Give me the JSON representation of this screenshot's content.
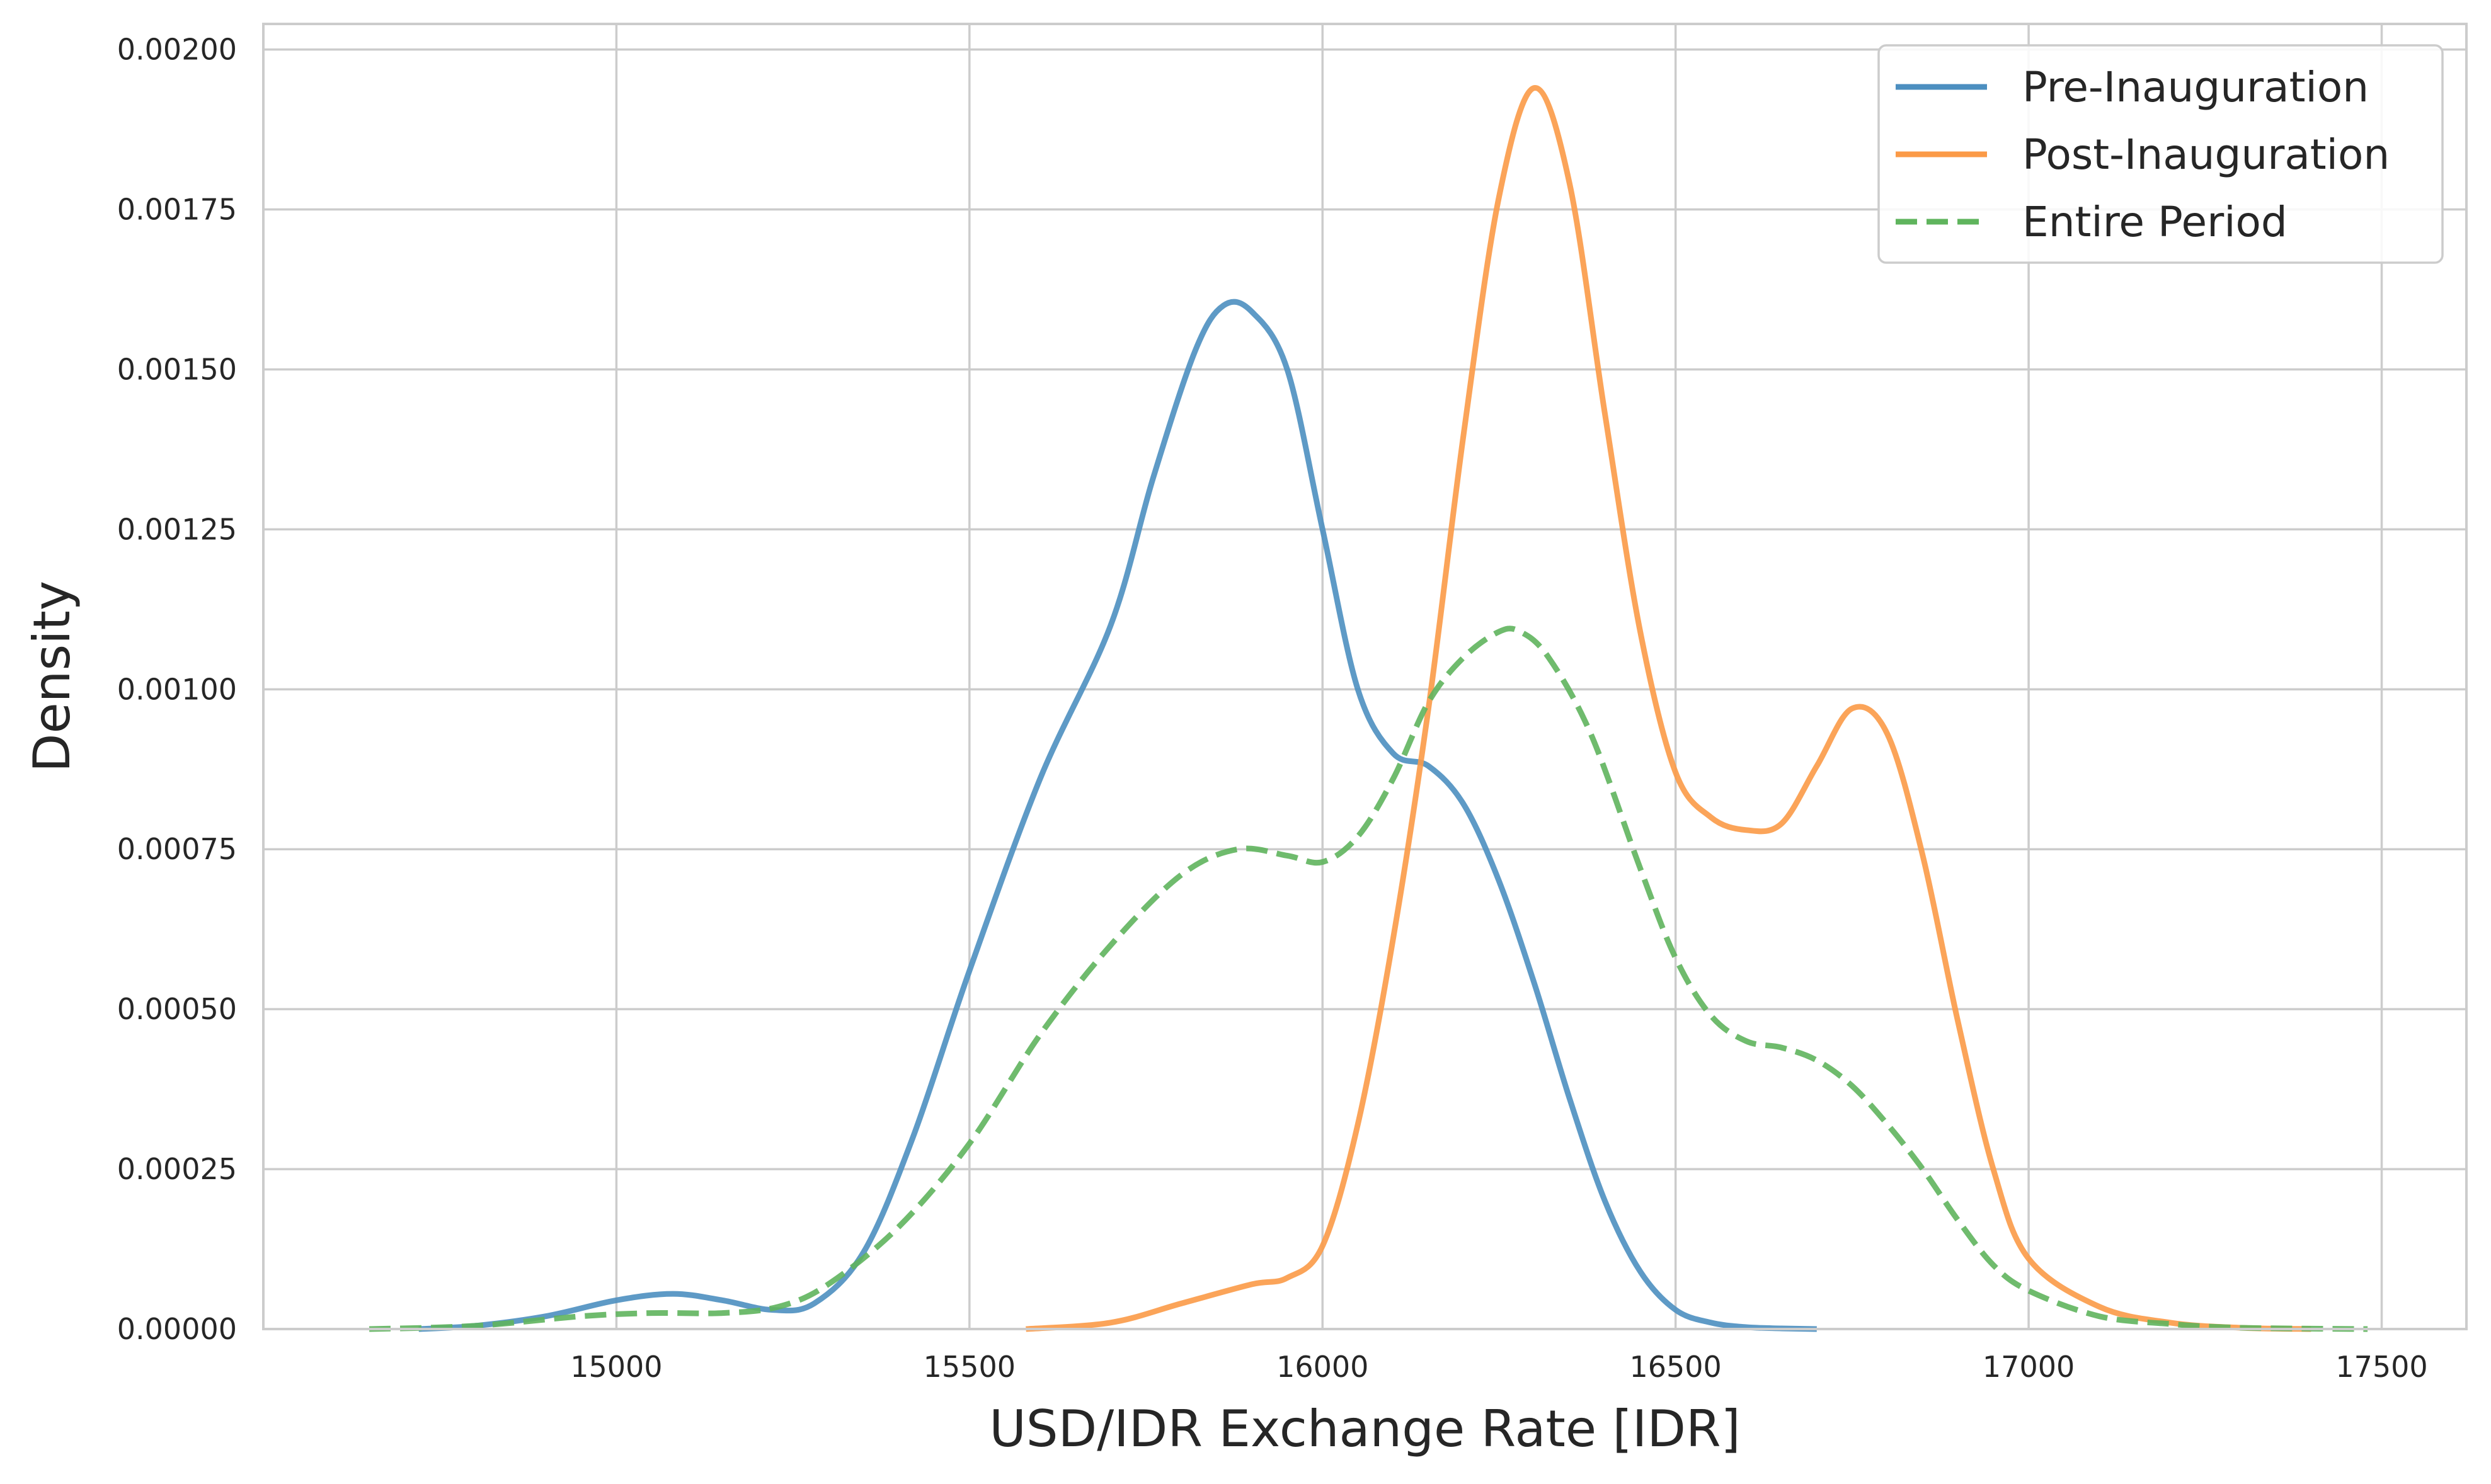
{
  "chart_data": {
    "type": "line",
    "title": "",
    "xlabel": "USD/IDR Exchange Rate [IDR]",
    "ylabel": "Density",
    "xlim": [
      14500,
      17620
    ],
    "ylim": [
      0,
      0.00204
    ],
    "xticks": [
      15000,
      15500,
      16000,
      16500,
      17000,
      17500
    ],
    "xtick_labels": [
      "15000",
      "15500",
      "16000",
      "16500",
      "17000",
      "17500"
    ],
    "yticks": [
      0,
      0.00025,
      0.0005,
      0.00075,
      0.001,
      0.00125,
      0.0015,
      0.00175,
      0.002
    ],
    "ytick_labels": [
      "0.00000",
      "0.00025",
      "0.00050",
      "0.00075",
      "0.00100",
      "0.00125",
      "0.00150",
      "0.00175",
      "0.00200"
    ],
    "grid": true,
    "legend_position": "top-right",
    "series": [
      {
        "name": "Pre-Inauguration",
        "color": "#4c8fc0",
        "dash": "solid",
        "x": [
          14720,
          14800,
          14900,
          15000,
          15080,
          15150,
          15220,
          15280,
          15350,
          15420,
          15500,
          15600,
          15700,
          15760,
          15820,
          15860,
          15900,
          15950,
          16000,
          16050,
          16100,
          16150,
          16200,
          16250,
          16300,
          16350,
          16400,
          16450,
          16500,
          16550,
          16600,
          16650,
          16700
        ],
        "y": [
          0.0,
          5e-06,
          2e-05,
          4.5e-05,
          5.5e-05,
          4.5e-05,
          3e-05,
          4e-05,
          0.00012,
          0.0003,
          0.00056,
          0.00086,
          0.0011,
          0.00133,
          0.00153,
          0.0016,
          0.00159,
          0.0015,
          0.00125,
          0.001,
          0.0009,
          0.00088,
          0.00082,
          0.0007,
          0.00054,
          0.00036,
          0.0002,
          9e-05,
          3e-05,
          1e-05,
          3e-06,
          1e-06,
          0.0
        ]
      },
      {
        "name": "Post-Inauguration",
        "color": "#fb9a47",
        "dash": "solid",
        "x": [
          15580,
          15700,
          15800,
          15900,
          15950,
          16000,
          16050,
          16100,
          16150,
          16200,
          16250,
          16300,
          16350,
          16400,
          16450,
          16500,
          16550,
          16600,
          16650,
          16700,
          16750,
          16800,
          16850,
          16900,
          16950,
          17000,
          17100,
          17200,
          17300,
          17400
        ],
        "y": [
          0.0,
          1e-05,
          4e-05,
          7e-05,
          8e-05,
          0.00013,
          0.00032,
          0.00061,
          0.00097,
          0.0014,
          0.00177,
          0.00194,
          0.00179,
          0.00143,
          0.00109,
          0.00087,
          0.0008,
          0.00078,
          0.00079,
          0.00088,
          0.00097,
          0.00093,
          0.00074,
          0.00048,
          0.00025,
          0.00011,
          3.5e-05,
          1e-05,
          2e-06,
          0.0
        ]
      },
      {
        "name": "Entire Period",
        "color": "#5fb45d",
        "dash": "dashed",
        "x": [
          14650,
          14800,
          14950,
          15050,
          15150,
          15230,
          15300,
          15400,
          15500,
          15600,
          15700,
          15800,
          15880,
          15950,
          16000,
          16050,
          16100,
          16150,
          16200,
          16250,
          16280,
          16320,
          16380,
          16450,
          16500,
          16550,
          16600,
          16650,
          16700,
          16750,
          16800,
          16850,
          16900,
          16950,
          17000,
          17100,
          17200,
          17300,
          17480
        ],
        "y": [
          0.0,
          5e-06,
          2e-05,
          2.5e-05,
          2.5e-05,
          3.5e-05,
          7e-05,
          0.00016,
          0.00029,
          0.00046,
          0.0006,
          0.00071,
          0.00075,
          0.00074,
          0.00073,
          0.00077,
          0.00086,
          0.00098,
          0.00105,
          0.00109,
          0.00109,
          0.00105,
          0.00093,
          0.00072,
          0.00058,
          0.00049,
          0.00045,
          0.00044,
          0.00042,
          0.00038,
          0.00032,
          0.00025,
          0.00017,
          0.0001,
          6e-05,
          2e-05,
          8e-06,
          2e-06,
          0.0
        ]
      }
    ]
  }
}
